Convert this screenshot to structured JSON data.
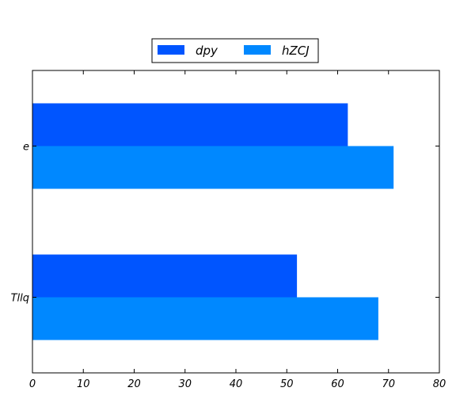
{
  "chart_data": {
    "type": "bar",
    "orientation": "horizontal",
    "categories": [
      "e",
      "Tllq"
    ],
    "series": [
      {
        "name": "dpy",
        "values": [
          62,
          52
        ],
        "color": "#0055ff"
      },
      {
        "name": "hZCJ",
        "values": [
          71,
          68
        ],
        "color": "#0088ff"
      }
    ],
    "xlim": [
      0,
      80
    ],
    "xticks": [
      "0",
      "10",
      "20",
      "30",
      "40",
      "50",
      "60",
      "70",
      "80"
    ],
    "xlabel": "",
    "ylabel": "",
    "title": "",
    "grid": false,
    "legend_position": "top-center"
  }
}
